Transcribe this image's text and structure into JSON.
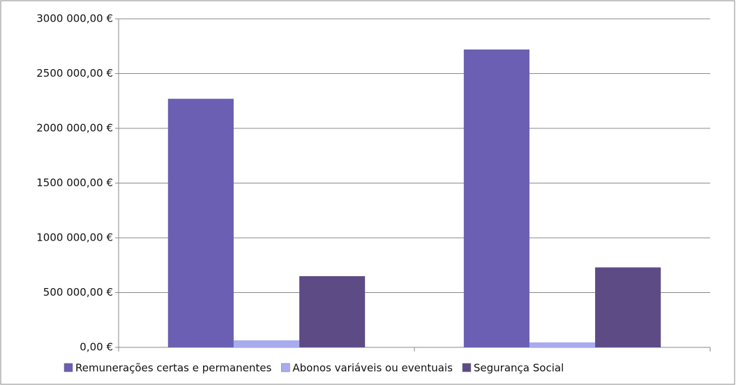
{
  "chart_data": {
    "type": "bar",
    "categories": [
      null,
      null
    ],
    "series": [
      {
        "name": "Remunerações certas e permanentes",
        "color": "#6a5fb2",
        "values": [
          2270000,
          2720000
        ]
      },
      {
        "name": "Abonos variáveis ou eventuais",
        "color": "#a9abef",
        "values": [
          64000,
          45000
        ]
      },
      {
        "name": "Segurança Social",
        "color": "#5d4b86",
        "values": [
          650000,
          730000
        ]
      }
    ],
    "ylim": [
      0,
      3000000
    ],
    "yticks": [
      {
        "value": 0,
        "label": "0,00 €"
      },
      {
        "value": 500000,
        "label": "500 000,00 €"
      },
      {
        "value": 1000000,
        "label": "1000 000,00 €"
      },
      {
        "value": 1500000,
        "label": "1500 000,00 €"
      },
      {
        "value": 2000000,
        "label": "2000 000,00 €"
      },
      {
        "value": 2500000,
        "label": "2500 000,00 €"
      },
      {
        "value": 3000000,
        "label": "3000 000,00 €"
      }
    ],
    "grid": true,
    "legend": "bottom"
  }
}
